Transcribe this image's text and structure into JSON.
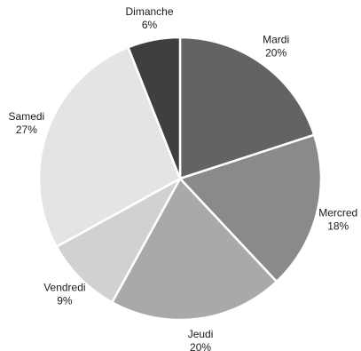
{
  "chart_data": {
    "type": "pie",
    "slices": [
      {
        "label": "Mardi",
        "value": 20,
        "value_label": "20%",
        "color": "#636363"
      },
      {
        "label": "Mercred",
        "value": 18,
        "value_label": "18%",
        "color": "#8a8a8a"
      },
      {
        "label": "Jeudi",
        "value": 20,
        "value_label": "20%",
        "color": "#a9a9a9"
      },
      {
        "label": "Vendredi",
        "value": 9,
        "value_label": "9%",
        "color": "#d1d1d1"
      },
      {
        "label": "Samedi",
        "value": 27,
        "value_label": "27%",
        "color": "#e4e4e4"
      },
      {
        "label": "Dimanche",
        "value": 6,
        "value_label": "6%",
        "color": "#3f3f3f"
      }
    ],
    "start_angle_deg": 0,
    "direction": "clockwise",
    "legend": "none"
  }
}
